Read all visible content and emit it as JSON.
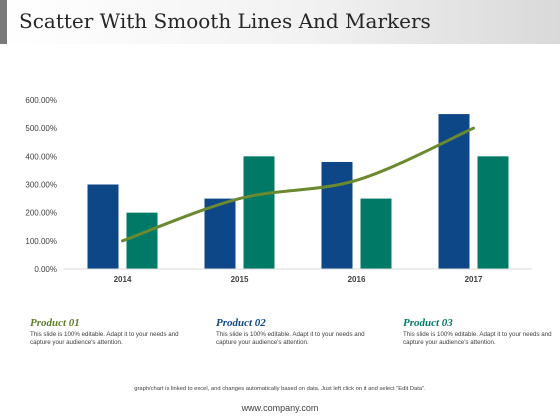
{
  "slide": {
    "title": "Scatter With Smooth Lines And Markers",
    "footnote": "graph/chart is linked  to excel, and changes automatically  based on data.  Just left click on it and select \"Edit Data\".",
    "website": "www.company.com"
  },
  "colors": {
    "series_a": "#0e4787",
    "series_b": "#007a66",
    "line": "#6b8a2f",
    "product1_title": "#5e7d2a",
    "product2_title": "#0e4787",
    "product3_title": "#007a66"
  },
  "products": [
    {
      "title": "Product 01",
      "description": "This slide is 100% editable. Adapt it to your needs and capture your audience's attention."
    },
    {
      "title": "Product 02",
      "description": "This slide is 100% editable. Adapt it to your needs and capture your audience's attention."
    },
    {
      "title": "Product 03",
      "description": "This slide is 100% editable. Adapt it to your needs and capture your audience's attention."
    }
  ],
  "chart_data": {
    "type": "bar",
    "categories": [
      "2014",
      "2015",
      "2016",
      "2017"
    ],
    "series": [
      {
        "values": [
          300,
          250,
          380,
          550
        ]
      },
      {
        "values": [
          200,
          400,
          250,
          400
        ]
      }
    ],
    "line_series": {
      "values": [
        100,
        250,
        315,
        500
      ]
    },
    "ylim": [
      0,
      600
    ],
    "yticks": [
      0,
      100,
      200,
      300,
      400,
      500,
      600
    ],
    "ytick_labels": [
      "0.00%",
      "100.00%",
      "200.00%",
      "300.00%",
      "400.00%",
      "500.00%",
      "600.00%"
    ],
    "grid": false,
    "legend": "none"
  }
}
